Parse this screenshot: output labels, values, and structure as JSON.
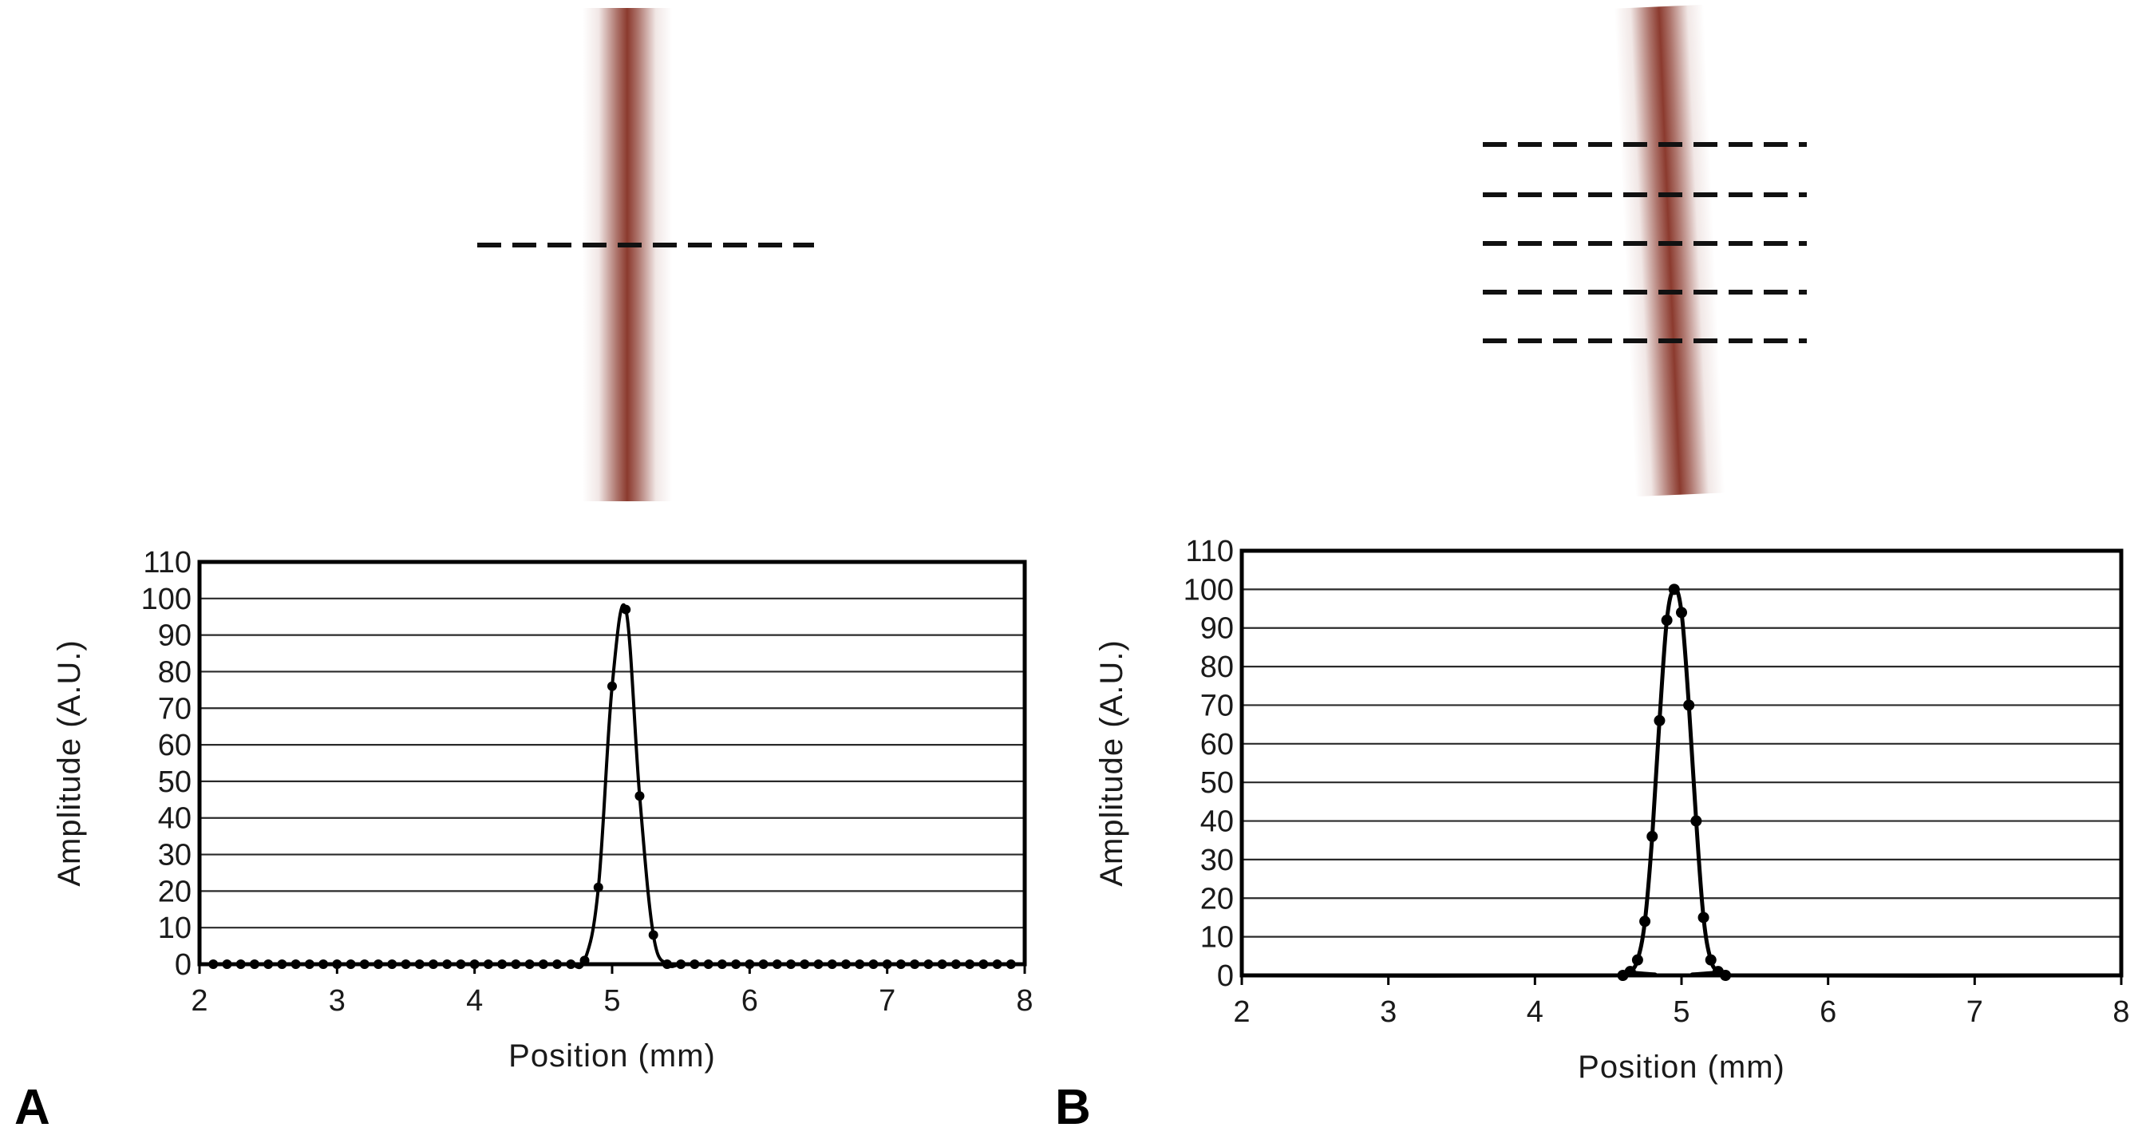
{
  "panels": [
    {
      "panel_label": "A",
      "fiber_image": {
        "fiber_color": "#8b3a2e",
        "profile_lines": 1
      }
    },
    {
      "panel_label": "B",
      "fiber_image": {
        "fiber_color": "#8b3a2e",
        "profile_lines": 5
      }
    }
  ],
  "chart_data": [
    {
      "type": "line",
      "title": "",
      "xlabel": "Position (mm)",
      "ylabel": "Amplitude (A.U.)",
      "xlim": [
        2,
        8
      ],
      "ylim": [
        0,
        110
      ],
      "xticks": [
        "2",
        "3",
        "4",
        "5",
        "6",
        "7",
        "8"
      ],
      "yticks": [
        "0",
        "10",
        "20",
        "30",
        "40",
        "50",
        "60",
        "70",
        "80",
        "90",
        "100",
        "110"
      ],
      "grid": "horizontal",
      "markers": true,
      "series": [
        {
          "x": [
            2.1,
            2.2,
            2.3,
            2.4,
            2.5,
            2.6,
            2.7,
            2.8,
            2.9,
            3.0,
            3.1,
            3.2,
            3.3,
            3.4,
            3.5,
            3.6,
            3.7,
            3.8,
            3.9,
            4.0,
            4.1,
            4.2,
            4.3,
            4.4,
            4.5,
            4.6,
            4.7,
            4.8,
            4.9,
            5.0,
            5.1,
            5.2,
            5.3,
            5.4,
            5.5,
            5.6,
            5.7,
            5.8,
            5.9,
            6.0,
            6.1,
            6.2,
            6.3,
            6.4,
            6.5,
            6.6,
            6.7,
            6.8,
            6.9,
            7.0,
            7.1,
            7.2,
            7.3,
            7.4,
            7.5,
            7.6,
            7.7,
            7.8,
            7.9
          ],
          "y": [
            0,
            0,
            0,
            0,
            0,
            0,
            0,
            0,
            0,
            0,
            0,
            0,
            0,
            0,
            0,
            0,
            0,
            0,
            0,
            0,
            0,
            0,
            0,
            0,
            0,
            0,
            0,
            1,
            21,
            76,
            97,
            46,
            8,
            0,
            0,
            0,
            0,
            0,
            0,
            0,
            0,
            0,
            0,
            0,
            0,
            0,
            0,
            0,
            0,
            0,
            0,
            0,
            0,
            0,
            0,
            0,
            0,
            0,
            0
          ]
        }
      ]
    },
    {
      "type": "line",
      "title": "",
      "xlabel": "Position (mm)",
      "ylabel": "Amplitude (A.U.)",
      "xlim": [
        2,
        8
      ],
      "ylim": [
        0,
        110
      ],
      "xticks": [
        "2",
        "3",
        "4",
        "5",
        "6",
        "7",
        "8"
      ],
      "yticks": [
        "0",
        "10",
        "20",
        "30",
        "40",
        "50",
        "60",
        "70",
        "80",
        "90",
        "100",
        "110"
      ],
      "grid": "horizontal",
      "markers": true,
      "series": [
        {
          "x": [
            4.6,
            4.65,
            4.7,
            4.75,
            4.8,
            4.85,
            4.9,
            4.95,
            5.0,
            5.05,
            5.1,
            5.15,
            5.2,
            5.25,
            5.3
          ],
          "y": [
            0,
            1,
            4,
            14,
            36,
            66,
            92,
            100,
            94,
            70,
            40,
            15,
            4,
            1,
            0
          ]
        }
      ]
    }
  ]
}
